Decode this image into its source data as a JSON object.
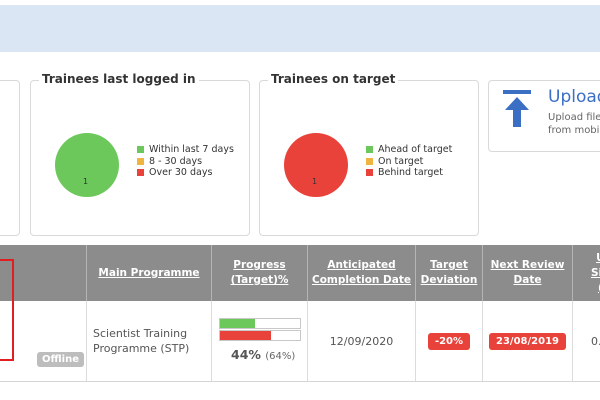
{
  "top_bar": {},
  "panels": {
    "logged_in": {
      "title": "Trainees last logged in",
      "pie_count": "1",
      "legend": [
        {
          "label": "Within last 7 days",
          "color": "#6cc85a"
        },
        {
          "label": "8 - 30 days",
          "color": "#f0b440"
        },
        {
          "label": "Over 30 days",
          "color": "#e8423a"
        }
      ],
      "pie_color": "#6cc85a"
    },
    "on_target": {
      "title": "Trainees on target",
      "pie_count": "1",
      "legend": [
        {
          "label": "Ahead of target",
          "color": "#6cc85a"
        },
        {
          "label": "On target",
          "color": "#f0b440"
        },
        {
          "label": "Behind target",
          "color": "#e8423a"
        }
      ],
      "pie_color": "#e8423a"
    },
    "upload": {
      "title": "Upload",
      "subtitle_line1": "Upload file",
      "subtitle_line2": "from mobi",
      "icon": "upload-arrow-icon"
    }
  },
  "table": {
    "headers": {
      "main_programme": "Main Programme",
      "progress_line1": "Progress",
      "progress_line2": "(Target)%",
      "completion_line1": "Anticipated",
      "completion_line2": "Completion Date",
      "deviation_line1": "Target",
      "deviation_line2": "Deviation",
      "review_line1": "Next Review",
      "review_line2": "Date",
      "cut_line1": "U",
      "cut_line2": "Sig",
      "cut_line3": "("
    },
    "row": {
      "status": "Offline",
      "programme_line1": "Scientist Training",
      "programme_line2": "Programme (STP)",
      "progress_value": "44%",
      "progress_target": "(64%)",
      "progress": 0.44,
      "target": 0.64,
      "progress_color": "#6cc85a",
      "target_color": "#e8423a",
      "completion_date": "12/09/2020",
      "deviation": "-20%",
      "next_review": "23/08/2019",
      "cut_value": "0."
    }
  }
}
